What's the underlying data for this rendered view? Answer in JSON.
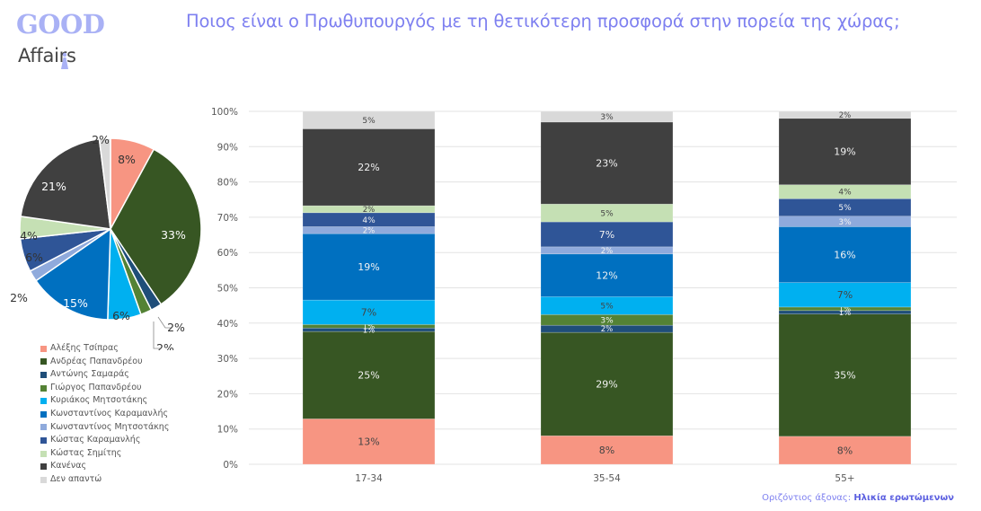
{
  "logo": {
    "line1": "GOOD",
    "line2": "Affairs"
  },
  "header": {
    "title": "Ποιος είναι ο Πρωθυπουργός με τη θετικότερη προσφορά στην πορεία της χώρας;"
  },
  "footer": {
    "axis_caption_prefix": "Οριζόντιος άξονας: ",
    "axis_caption_value": "Ηλικία ερωτώμενων"
  },
  "colors": {
    "tsipras": "#F79582",
    "andreas": "#375623",
    "samaras": "#1F4E79",
    "giorgos": "#548235",
    "kyriakos": "#00B0F0",
    "k_karamanlis": "#0070C0",
    "k_mitsotakis": "#8FAADC",
    "kostas_karamanlis": "#2F5597",
    "simitis": "#C5E0B4",
    "kanenas": "#404040",
    "den_apanto": "#D9D9D9"
  },
  "chart_data": [
    {
      "type": "pie",
      "title": "",
      "categories": [
        "Αλέξης Τσίπρας",
        "Ανδρέας Παπανδρέου",
        "Αντώνης Σαμαράς",
        "Γιώργος Παπανδρέου",
        "Κυριάκος Μητσοτάκης",
        "Κωνσταντίνος Καραμανλής",
        "Κωνσταντίνος Μητσοτάκης",
        "Κώστας Καραμανλής",
        "Κώστας Σημίτης",
        "Κανένας",
        "Δεν απαντώ"
      ],
      "values": [
        8,
        33,
        2,
        2,
        6,
        15,
        2,
        6,
        4,
        21,
        2
      ],
      "labels": [
        "8%",
        "33%",
        "2%",
        "2%",
        "6%",
        "15%",
        "2%",
        "6%",
        "4%",
        "21%",
        "2%"
      ],
      "legend_position": "bottom"
    },
    {
      "type": "bar",
      "stacked": "percent",
      "title": "",
      "categories": [
        "17-34",
        "35-54",
        "55+"
      ],
      "xlabel": "Ηλικία ερωτώμενων",
      "ylabel": "",
      "ylim": [
        0,
        100
      ],
      "yticks": [
        "0%",
        "10%",
        "20%",
        "30%",
        "40%",
        "50%",
        "60%",
        "70%",
        "80%",
        "90%",
        "100%"
      ],
      "grid": true,
      "series": [
        {
          "name": "Αλέξης Τσίπρας",
          "key": "tsipras",
          "values": [
            13,
            8,
            8
          ]
        },
        {
          "name": "Ανδρέας Παπανδρέου",
          "key": "andreas",
          "values": [
            25,
            29,
            35
          ]
        },
        {
          "name": "Αντώνης Σαμαράς",
          "key": "samaras",
          "values": [
            1,
            2,
            1
          ]
        },
        {
          "name": "Γιώργος Παπανδρέου",
          "key": "giorgos",
          "values": [
            1,
            3,
            1
          ]
        },
        {
          "name": "Κυριάκος Μητσοτάκης",
          "key": "kyriakos",
          "values": [
            7,
            5,
            7
          ]
        },
        {
          "name": "Κωνσταντίνος Καραμανλής",
          "key": "k_karamanlis",
          "values": [
            19,
            12,
            16
          ]
        },
        {
          "name": "Κωνσταντίνος Μητσοτάκης",
          "key": "k_mitsotakis",
          "values": [
            2,
            2,
            3
          ]
        },
        {
          "name": "Κώστας Καραμανλής",
          "key": "kostas_karamanlis",
          "values": [
            4,
            7,
            5
          ]
        },
        {
          "name": "Κώστας Σημίτης",
          "key": "simitis",
          "values": [
            2,
            5,
            4
          ]
        },
        {
          "name": "Κανένας",
          "key": "kanenas",
          "values": [
            22,
            23,
            19
          ]
        },
        {
          "name": "Δεν απαντώ",
          "key": "den_apanto",
          "values": [
            5,
            3,
            2
          ]
        }
      ]
    }
  ]
}
